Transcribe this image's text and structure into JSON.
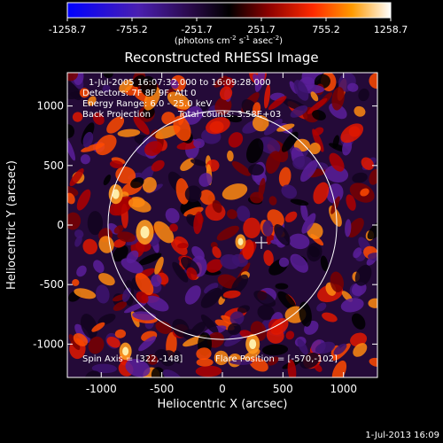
{
  "colorbar": {
    "ticks": [
      "-1258.7",
      "-755.2",
      "-251.7",
      "251.7",
      "755.2",
      "1258.7"
    ],
    "tick_values": [
      -1258.7,
      -755.2,
      -251.7,
      251.7,
      755.2,
      1258.7
    ],
    "range": [
      -1258.7,
      1258.7
    ],
    "units_main": "(photons cm",
    "units_exp1": "-2",
    "units_mid": " s",
    "units_exp2": "-1",
    "units_end": " asec",
    "units_exp3": "-2",
    "units_close": ")"
  },
  "chart_data": {
    "type": "heatmap",
    "title": "Reconstructed RHESSI Image",
    "xlabel": "Heliocentric X (arcsec)",
    "ylabel": "Heliocentric Y (arcsec)",
    "xlim": [
      -1280,
      1280
    ],
    "ylim": [
      -1280,
      1280
    ],
    "x_ticks": [
      "-1000",
      "-500",
      "0",
      "500",
      "1000"
    ],
    "x_tick_values": [
      -1000,
      -500,
      0,
      500,
      1000
    ],
    "y_ticks": [
      "1000",
      "500",
      "0",
      "-500",
      "-1000"
    ],
    "y_tick_values": [
      1000,
      500,
      0,
      -500,
      -1000
    ],
    "solar_limb_radius": 944,
    "crosshair_position": [
      322,
      -148
    ],
    "annotations": {
      "time_range": "1-Jul-2005 16:07:32.000 to 16:09:28.000",
      "detectors": "Detectors: 7F 8F 9F, Att 0",
      "energy": "Energy Range: 6.0 - 25.0 keV",
      "method": "Back Projection",
      "total_counts": "Total counts: 3.58E+03",
      "spin_axis": "Spin Axis = [322,-148]",
      "flare_position": "Flare Position = [-570,-102]"
    }
  },
  "footer": {
    "timestamp": "1-Jul-2013 16:09"
  },
  "colors": {
    "background": "#000000",
    "foreground": "#ffffff",
    "colormap": [
      "#0000ff",
      "#3a1a8a",
      "#000000",
      "#9a0000",
      "#ff3000",
      "#ffa000",
      "#ffffff"
    ]
  }
}
